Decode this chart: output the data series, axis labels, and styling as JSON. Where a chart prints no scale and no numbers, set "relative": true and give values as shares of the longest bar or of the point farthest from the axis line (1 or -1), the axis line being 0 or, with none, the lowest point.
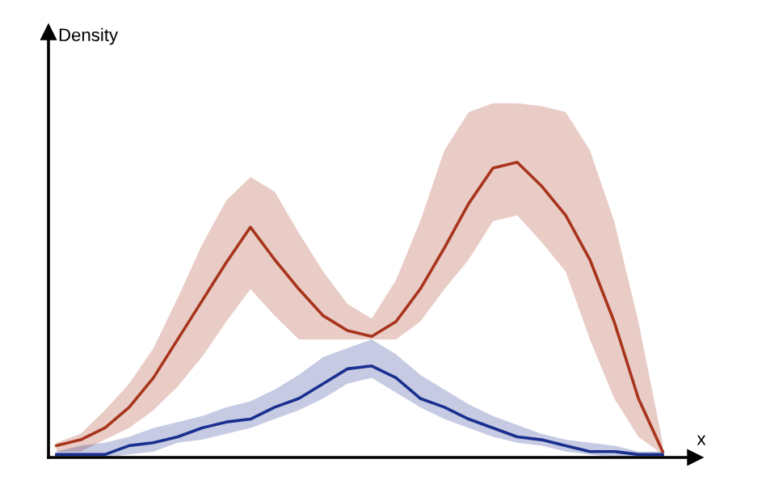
{
  "chart_data": {
    "type": "line",
    "relative": true,
    "xlabel": "x",
    "annotations": [
      "Density"
    ],
    "grid": false,
    "legend": false,
    "marker": "none",
    "line_style": "solid",
    "categories": [
      null,
      null,
      null,
      null,
      null,
      null,
      null,
      null,
      null,
      null,
      null,
      null,
      null,
      null,
      null,
      null,
      null,
      null,
      null,
      null,
      null,
      null,
      null,
      null,
      null,
      null
    ],
    "series": [
      {
        "color": "#a8341c",
        "values": [
          0.04,
          0.06,
          0.1,
          0.17,
          0.27,
          0.4,
          0.53,
          0.66,
          0.78,
          0.67,
          0.57,
          0.48,
          0.43,
          0.41,
          0.46,
          0.57,
          0.71,
          0.86,
          0.98,
          1.0,
          0.92,
          0.82,
          0.67,
          0.46,
          0.2,
          0.02
        ],
        "upper": [
          0.05,
          0.08,
          0.16,
          0.25,
          0.37,
          0.54,
          0.72,
          0.87,
          0.95,
          0.9,
          0.76,
          0.63,
          0.52,
          0.47,
          0.6,
          0.8,
          1.04,
          1.17,
          1.2,
          1.2,
          1.19,
          1.17,
          1.04,
          0.8,
          0.46,
          0.05
        ],
        "lower": [
          0.02,
          0.02,
          0.06,
          0.1,
          0.16,
          0.24,
          0.34,
          0.46,
          0.57,
          0.48,
          0.4,
          0.4,
          0.4,
          0.4,
          0.4,
          0.46,
          0.57,
          0.67,
          0.8,
          0.82,
          0.73,
          0.63,
          0.4,
          0.2,
          0.07,
          0.01
        ]
      },
      {
        "color": "#1a2f8f",
        "values": [
          0.01,
          0.01,
          0.01,
          0.04,
          0.05,
          0.07,
          0.1,
          0.12,
          0.13,
          0.17,
          0.2,
          0.25,
          0.3,
          0.31,
          0.27,
          0.2,
          0.17,
          0.13,
          0.1,
          0.07,
          0.06,
          0.04,
          0.02,
          0.02,
          0.01,
          0.01
        ],
        "upper": [
          0.02,
          0.04,
          0.05,
          0.07,
          0.1,
          0.12,
          0.14,
          0.17,
          0.19,
          0.23,
          0.28,
          0.34,
          0.37,
          0.4,
          0.35,
          0.28,
          0.23,
          0.18,
          0.14,
          0.11,
          0.08,
          0.06,
          0.05,
          0.04,
          0.02,
          0.02
        ],
        "lower": [
          0.0,
          0.0,
          0.0,
          0.01,
          0.02,
          0.05,
          0.06,
          0.08,
          0.1,
          0.13,
          0.16,
          0.2,
          0.25,
          0.27,
          0.22,
          0.17,
          0.13,
          0.1,
          0.07,
          0.05,
          0.04,
          0.02,
          0.01,
          0.0,
          0.0,
          0.0
        ]
      }
    ]
  }
}
